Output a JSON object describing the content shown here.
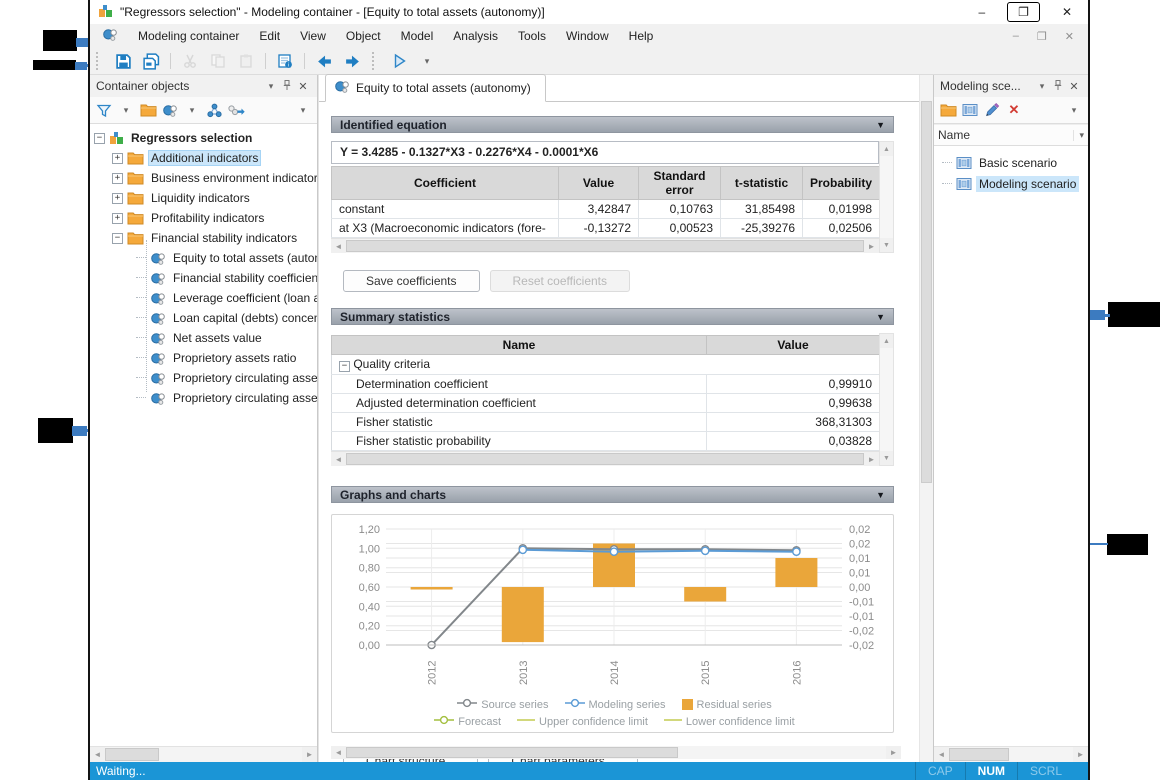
{
  "window": {
    "title": "\"Regressors selection\" - Modeling container - [Equity to total assets (autonomy)]",
    "controls": {
      "minimize": "–",
      "maximize": "❐",
      "close": "✕"
    }
  },
  "menubar": {
    "items": [
      "Modeling container",
      "Edit",
      "View",
      "Object",
      "Model",
      "Analysis",
      "Tools",
      "Window",
      "Help"
    ],
    "mdi_controls": {
      "minimize": "–",
      "restore": "❐",
      "close": "✕"
    }
  },
  "toolbar": {
    "icons": [
      "save",
      "save-all",
      "sep",
      "cut",
      "copy",
      "paste",
      "sep",
      "properties",
      "sep",
      "back",
      "forward",
      "grip",
      "run",
      "caret"
    ]
  },
  "left_panel": {
    "title": "Container objects",
    "toolbar_icons": [
      "funnel",
      "caret",
      "folder",
      "model",
      "caret",
      "network",
      "chain",
      "spacer",
      "caret"
    ],
    "tree": {
      "root": "Regressors selection",
      "folders": [
        {
          "label": "Additional indicators",
          "state": "collapsed",
          "selected": true
        },
        {
          "label": "Business environment indicators",
          "state": "collapsed",
          "selected": false
        },
        {
          "label": "Liquidity indicators",
          "state": "collapsed",
          "selected": false
        },
        {
          "label": "Profitability indicators",
          "state": "collapsed",
          "selected": false
        },
        {
          "label": "Financial stability indicators",
          "state": "expanded",
          "selected": false
        }
      ],
      "leaves": [
        "Equity to total assets (autono",
        "Financial stability coefficient",
        "Leverage coefficient (loan ass",
        "Loan capital (debts) concentra",
        "Net assets value",
        "Proprietory assets ratio",
        "Proprietory circulating assets",
        "Proprietory circulating assets"
      ]
    }
  },
  "document": {
    "tab": "Equity to total assets (autonomy)",
    "identified_equation": {
      "header": "Identified equation",
      "equation": "Y = 3.4285 - 0.1327*X3 - 0.2276*X4 - 0.0001*X6",
      "table": {
        "headers": [
          "Coefficient",
          "Value",
          "Standard error",
          "t-statistic",
          "Probability"
        ],
        "rows": [
          [
            "constant",
            "3,42847",
            "0,10763",
            "31,85498",
            "0,01998"
          ],
          [
            "at X3 (Macroeconomic indicators (fore-",
            "-0,13272",
            "0,00523",
            "-25,39276",
            "0,02506"
          ]
        ]
      },
      "save_button": "Save coefficients",
      "reset_button": "Reset coefficients"
    },
    "summary_statistics": {
      "header": "Summary statistics",
      "columns": [
        "Name",
        "Value"
      ],
      "group": "Quality criteria",
      "rows": [
        [
          "Determination coefficient",
          "0,99910"
        ],
        [
          "Adjusted determination coefficient",
          "0,99638"
        ],
        [
          "Fisher statistic",
          "368,31303"
        ],
        [
          "Fisher statistic probability",
          "0,03828"
        ]
      ]
    },
    "graphs": {
      "header": "Graphs and charts",
      "structure_button": "Chart structure...",
      "parameters_button": "Chart parameters..."
    }
  },
  "chart_data": {
    "type": "line+bar",
    "x": [
      "2012",
      "2013",
      "2014",
      "2015",
      "2016"
    ],
    "series": [
      {
        "name": "Source series",
        "type": "line",
        "axis": "left",
        "color": "#82878b",
        "values": [
          0.0,
          1.0,
          0.99,
          0.99,
          0.98
        ]
      },
      {
        "name": "Modeling series",
        "type": "line",
        "axis": "left",
        "color": "#5b9bd5",
        "values": [
          null,
          0.985,
          0.965,
          0.975,
          0.965
        ]
      },
      {
        "name": "Residual series",
        "type": "bar",
        "axis": "right",
        "color": "#eaa63a",
        "values": [
          -0.0005,
          -0.019,
          0.015,
          -0.005,
          0.01
        ]
      }
    ],
    "left_axis": {
      "ticks": [
        "1,20",
        "1,00",
        "0,80",
        "0,60",
        "0,40",
        "0,20",
        "0,00"
      ],
      "values": [
        1.2,
        1.0,
        0.8,
        0.6,
        0.4,
        0.2,
        0.0
      ],
      "range": [
        0,
        1.2
      ]
    },
    "right_axis": {
      "ticks": [
        "0,02",
        "0,02",
        "0,01",
        "0,01",
        "0,00",
        "-0,01",
        "-0,01",
        "-0,02",
        "-0,02"
      ],
      "range": [
        -0.02,
        0.02
      ],
      "zero_at_left_value": 0.6
    },
    "legend_position": "bottom",
    "grid": true,
    "legend": [
      {
        "label": "Source series",
        "swatch": "line-marker",
        "color": "#82878b"
      },
      {
        "label": "Modeling series",
        "swatch": "line-marker",
        "color": "#5b9bd5"
      },
      {
        "label": "Residual series",
        "swatch": "square",
        "color": "#eaa63a"
      },
      {
        "label": "Forecast",
        "swatch": "line-marker",
        "color": "#a3bf3f"
      },
      {
        "label": "Upper confidence limit",
        "swatch": "line",
        "color": "#c3cc51"
      },
      {
        "label": "Lower confidence limit",
        "swatch": "line",
        "color": "#c3cc51"
      }
    ]
  },
  "right_panel": {
    "title": "Modeling sce...",
    "toolbar_icons": [
      "folder",
      "scenario",
      "pencil",
      "delete",
      "spacer",
      "caret"
    ],
    "column_header": "Name",
    "items": [
      {
        "label": "Basic scenario",
        "selected": false
      },
      {
        "label": "Modeling scenario",
        "selected": true
      }
    ]
  },
  "statusbar": {
    "message": "Waiting...",
    "indicators": [
      {
        "label": "CAP",
        "active": false
      },
      {
        "label": "NUM",
        "active": true
      },
      {
        "label": "SCRL",
        "active": false
      }
    ]
  },
  "colors": {
    "accent_blue": "#1f7ec2",
    "selection": "#cbe6fa",
    "status_bar": "#1b95d6",
    "bar_orange": "#eaa63a",
    "section_header": "#9aa1ab"
  }
}
